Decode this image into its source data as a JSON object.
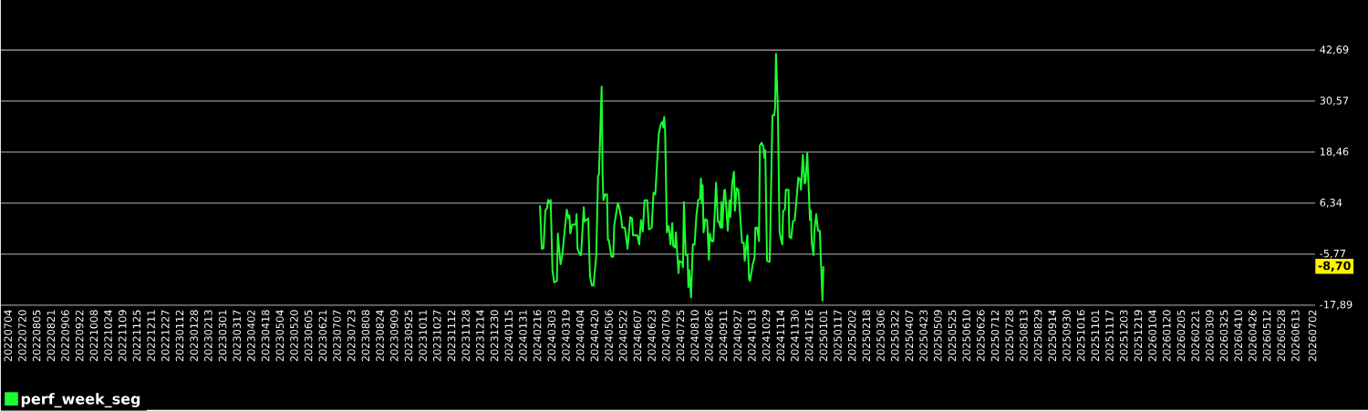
{
  "chart_data": {
    "type": "line",
    "xlim": [
      "2022-06-26",
      "2026-07-05"
    ],
    "ylim": [
      -17.89,
      42.69
    ],
    "yticks": [
      {
        "value": -17.89,
        "label": "-17,89"
      },
      {
        "value": -5.77,
        "label": "-5,77"
      },
      {
        "value": 6.34,
        "label": "6,34"
      },
      {
        "value": 18.46,
        "label": "18,46"
      },
      {
        "value": 30.57,
        "label": "30,57"
      },
      {
        "value": 42.69,
        "label": "42,69"
      }
    ],
    "xticks": [
      {
        "value": "2022-07-04",
        "label": "20220704"
      },
      {
        "value": "2022-07-20",
        "label": "20220720"
      },
      {
        "value": "2022-08-05",
        "label": "20220805"
      },
      {
        "value": "2022-08-21",
        "label": "20220821"
      },
      {
        "value": "2022-09-06",
        "label": "20220906"
      },
      {
        "value": "2022-09-22",
        "label": "20220922"
      },
      {
        "value": "2022-10-08",
        "label": "20221008"
      },
      {
        "value": "2022-10-24",
        "label": "20221024"
      },
      {
        "value": "2022-11-09",
        "label": "20221109"
      },
      {
        "value": "2022-11-25",
        "label": "20221125"
      },
      {
        "value": "2022-12-11",
        "label": "20221211"
      },
      {
        "value": "2022-12-27",
        "label": "20221227"
      },
      {
        "value": "2023-01-12",
        "label": "20230112"
      },
      {
        "value": "2023-01-28",
        "label": "20230128"
      },
      {
        "value": "2023-02-13",
        "label": "20230213"
      },
      {
        "value": "2023-03-01",
        "label": "20230301"
      },
      {
        "value": "2023-03-17",
        "label": "20230317"
      },
      {
        "value": "2023-04-02",
        "label": "20230402"
      },
      {
        "value": "2023-04-18",
        "label": "20230418"
      },
      {
        "value": "2023-05-04",
        "label": "20230504"
      },
      {
        "value": "2023-05-20",
        "label": "20230520"
      },
      {
        "value": "2023-06-05",
        "label": "20230605"
      },
      {
        "value": "2023-06-21",
        "label": "20230621"
      },
      {
        "value": "2023-07-07",
        "label": "20230707"
      },
      {
        "value": "2023-07-23",
        "label": "20230723"
      },
      {
        "value": "2023-08-08",
        "label": "20230808"
      },
      {
        "value": "2023-08-24",
        "label": "20230824"
      },
      {
        "value": "2023-09-09",
        "label": "20230909"
      },
      {
        "value": "2023-09-25",
        "label": "20230925"
      },
      {
        "value": "2023-10-11",
        "label": "20231011"
      },
      {
        "value": "2023-10-27",
        "label": "20231027"
      },
      {
        "value": "2023-11-12",
        "label": "20231112"
      },
      {
        "value": "2023-11-28",
        "label": "20231128"
      },
      {
        "value": "2023-12-14",
        "label": "20231214"
      },
      {
        "value": "2023-12-30",
        "label": "20231230"
      },
      {
        "value": "2024-01-15",
        "label": "20240115"
      },
      {
        "value": "2024-01-31",
        "label": "20240131"
      },
      {
        "value": "2024-02-16",
        "label": "20240216"
      },
      {
        "value": "2024-03-03",
        "label": "20240303"
      },
      {
        "value": "2024-03-19",
        "label": "20240319"
      },
      {
        "value": "2024-04-04",
        "label": "20240404"
      },
      {
        "value": "2024-04-20",
        "label": "20240420"
      },
      {
        "value": "2024-05-06",
        "label": "20240506"
      },
      {
        "value": "2024-05-22",
        "label": "20240522"
      },
      {
        "value": "2024-06-07",
        "label": "20240607"
      },
      {
        "value": "2024-06-23",
        "label": "20240623"
      },
      {
        "value": "2024-07-09",
        "label": "20240709"
      },
      {
        "value": "2024-07-25",
        "label": "20240725"
      },
      {
        "value": "2024-08-10",
        "label": "20240810"
      },
      {
        "value": "2024-08-26",
        "label": "20240826"
      },
      {
        "value": "2024-09-11",
        "label": "20240911"
      },
      {
        "value": "2024-09-27",
        "label": "20240927"
      },
      {
        "value": "2024-10-13",
        "label": "20241013"
      },
      {
        "value": "2024-10-29",
        "label": "20241029"
      },
      {
        "value": "2024-11-14",
        "label": "20241114"
      },
      {
        "value": "2024-11-30",
        "label": "20241130"
      },
      {
        "value": "2024-12-16",
        "label": "20241216"
      },
      {
        "value": "2025-01-01",
        "label": "20250101"
      },
      {
        "value": "2025-01-17",
        "label": "20250117"
      },
      {
        "value": "2025-02-02",
        "label": "20250202"
      },
      {
        "value": "2025-02-18",
        "label": "20250218"
      },
      {
        "value": "2025-03-06",
        "label": "20250306"
      },
      {
        "value": "2025-03-22",
        "label": "20250322"
      },
      {
        "value": "2025-04-07",
        "label": "20250407"
      },
      {
        "value": "2025-04-23",
        "label": "20250423"
      },
      {
        "value": "2025-05-09",
        "label": "20250509"
      },
      {
        "value": "2025-05-25",
        "label": "20250525"
      },
      {
        "value": "2025-06-10",
        "label": "20250610"
      },
      {
        "value": "2025-06-26",
        "label": "20250626"
      },
      {
        "value": "2025-07-12",
        "label": "20250712"
      },
      {
        "value": "2025-07-28",
        "label": "20250728"
      },
      {
        "value": "2025-08-13",
        "label": "20250813"
      },
      {
        "value": "2025-08-29",
        "label": "20250829"
      },
      {
        "value": "2025-09-14",
        "label": "20250914"
      },
      {
        "value": "2025-09-30",
        "label": "20250930"
      },
      {
        "value": "2025-10-16",
        "label": "20251016"
      },
      {
        "value": "2025-11-01",
        "label": "20251101"
      },
      {
        "value": "2025-11-17",
        "label": "20251117"
      },
      {
        "value": "2025-12-03",
        "label": "20251203"
      },
      {
        "value": "2025-12-19",
        "label": "20251219"
      },
      {
        "value": "2026-01-04",
        "label": "20260104"
      },
      {
        "value": "2026-01-20",
        "label": "20260120"
      },
      {
        "value": "2026-02-05",
        "label": "20260205"
      },
      {
        "value": "2026-02-21",
        "label": "20260221"
      },
      {
        "value": "2026-03-09",
        "label": "20260309"
      },
      {
        "value": "2026-03-25",
        "label": "20260325"
      },
      {
        "value": "2026-04-10",
        "label": "20260410"
      },
      {
        "value": "2026-04-26",
        "label": "20260426"
      },
      {
        "value": "2026-05-12",
        "label": "20260512"
      },
      {
        "value": "2026-05-28",
        "label": "20260528"
      },
      {
        "value": "2026-06-13",
        "label": "20260613"
      },
      {
        "value": "2026-07-02",
        "label": "20260702"
      }
    ],
    "grid": "y",
    "legend": "bottom left",
    "annotations": [
      {
        "text": "-8,70",
        "y": -8.7
      }
    ],
    "series": [
      {
        "name": "perf_week_seg",
        "color": "#1aff2e",
        "x": [
          "2024-02-19",
          "2024-02-21",
          "2024-02-23",
          "2024-02-25",
          "2024-02-27",
          "2024-02-28",
          "2024-03-01",
          "2024-03-02",
          "2024-03-04",
          "2024-03-06",
          "2024-03-09",
          "2024-03-10",
          "2024-03-13",
          "2024-03-15",
          "2024-03-20",
          "2024-03-22",
          "2024-03-23",
          "2024-03-24",
          "2024-03-26",
          "2024-03-30",
          "2024-03-31",
          "2024-04-01",
          "2024-04-04",
          "2024-04-05",
          "2024-04-08",
          "2024-04-09",
          "2024-04-13",
          "2024-04-15",
          "2024-04-17",
          "2024-04-19",
          "2024-04-22",
          "2024-04-24",
          "2024-04-25",
          "2024-04-28",
          "2024-04-29",
          "2024-04-30",
          "2024-05-02",
          "2024-05-04",
          "2024-05-05",
          "2024-05-06",
          "2024-05-09",
          "2024-05-11",
          "2024-05-12",
          "2024-05-16",
          "2024-05-17",
          "2024-05-20",
          "2024-05-21",
          "2024-05-24",
          "2024-05-27",
          "2024-05-30",
          "2024-06-01",
          "2024-06-02",
          "2024-06-07",
          "2024-06-09",
          "2024-06-11",
          "2024-06-13",
          "2024-06-15",
          "2024-06-18",
          "2024-06-20",
          "2024-06-23",
          "2024-06-25",
          "2024-06-27",
          "2024-07-01",
          "2024-07-03",
          "2024-07-05",
          "2024-07-06",
          "2024-07-07",
          "2024-07-08",
          "2024-07-10",
          "2024-07-12",
          "2024-07-14",
          "2024-07-16",
          "2024-07-17",
          "2024-07-19",
          "2024-07-20",
          "2024-07-23",
          "2024-07-24",
          "2024-07-27",
          "2024-07-28",
          "2024-07-29",
          "2024-07-31",
          "2024-08-02",
          "2024-08-03",
          "2024-08-04",
          "2024-08-06",
          "2024-08-08",
          "2024-08-10",
          "2024-08-12",
          "2024-08-14",
          "2024-08-16",
          "2024-08-17",
          "2024-08-18",
          "2024-08-19",
          "2024-08-20",
          "2024-08-22",
          "2024-08-24",
          "2024-08-26",
          "2024-08-27",
          "2024-08-29",
          "2024-08-31",
          "2024-09-03",
          "2024-09-05",
          "2024-09-06",
          "2024-09-08",
          "2024-09-09",
          "2024-09-10",
          "2024-09-12",
          "2024-09-13",
          "2024-09-15",
          "2024-09-16",
          "2024-09-18",
          "2024-09-19",
          "2024-09-21",
          "2024-09-23",
          "2024-09-24",
          "2024-09-26",
          "2024-09-28",
          "2024-10-02",
          "2024-10-04",
          "2024-10-05",
          "2024-10-08",
          "2024-10-10",
          "2024-10-11",
          "2024-10-14",
          "2024-10-16",
          "2024-10-17",
          "2024-10-19",
          "2024-10-21",
          "2024-10-22",
          "2024-10-24",
          "2024-10-26",
          "2024-10-27",
          "2024-10-28",
          "2024-10-30",
          "2024-11-02",
          "2024-11-05",
          "2024-11-07",
          "2024-11-08",
          "2024-11-09",
          "2024-11-11",
          "2024-11-13",
          "2024-11-16",
          "2024-11-17",
          "2024-11-19",
          "2024-11-20",
          "2024-11-23",
          "2024-11-24",
          "2024-11-26",
          "2024-11-28",
          "2024-11-30",
          "2024-12-04",
          "2024-12-06",
          "2024-12-07",
          "2024-12-09",
          "2024-12-11",
          "2024-12-12",
          "2024-12-14",
          "2024-12-17",
          "2024-12-18",
          "2024-12-19",
          "2024-12-21",
          "2024-12-22",
          "2024-12-24",
          "2024-12-26",
          "2024-12-28",
          "2024-12-29",
          "2024-12-31",
          "2025-01-01"
        ],
        "values": [
          5.8,
          -4.5,
          -4.4,
          4.5,
          5.2,
          7.1,
          6.3,
          7.1,
          -9.6,
          -12.5,
          -12.1,
          -0.9,
          -8.2,
          -6.0,
          4.8,
          2.7,
          3.4,
          -0.9,
          1.2,
          1.2,
          3.7,
          -4.5,
          -6.0,
          -6.0,
          5.4,
          2.0,
          2.7,
          -11.0,
          -13.2,
          -13.2,
          -6.0,
          12.8,
          13.1,
          34.0,
          13.5,
          7.0,
          8.4,
          8.4,
          -2.4,
          -2.4,
          -6.4,
          -6.4,
          0.9,
          6.3,
          5.9,
          2.7,
          0.5,
          0.5,
          -4.5,
          3.0,
          2.7,
          -1.3,
          -1.3,
          -3.5,
          2.3,
          -0.4,
          7.0,
          7.0,
          0.1,
          0.5,
          8.8,
          8.4,
          22.9,
          25.0,
          25.7,
          24.3,
          26.8,
          23.6,
          -0.6,
          0.9,
          -3.5,
          1.6,
          -3.8,
          -4.2,
          -0.6,
          -10.3,
          -7.4,
          -7.8,
          -8.9,
          6.6,
          -6.0,
          -6.0,
          -13.6,
          -9.6,
          -16.1,
          -3.5,
          -3.5,
          3.4,
          7.0,
          7.4,
          12.2,
          6.3,
          10.6,
          -0.6,
          2.5,
          2.3,
          -7.1,
          -0.9,
          -2.7,
          -2.7,
          11.2,
          2.0,
          2.0,
          0.5,
          6.6,
          0.5,
          9.3,
          9.5,
          3.4,
          -0.2,
          7.0,
          3.0,
          11.0,
          13.8,
          4.5,
          9.9,
          9.5,
          -3.1,
          -3.1,
          -7.4,
          -1.3,
          -11.8,
          -12.1,
          -8.2,
          -6.7,
          0.5,
          0.5,
          -2.7,
          20.0,
          20.7,
          19.6,
          17.1,
          18.9,
          -7.4,
          -7.6,
          27.2,
          27.2,
          29.0,
          41.8,
          29.3,
          -0.6,
          -3.5,
          4.5,
          4.8,
          9.5,
          9.5,
          -1.7,
          -2.0,
          2.0,
          2.3,
          12.4,
          12.0,
          9.5,
          17.8,
          11.0,
          11.3,
          18.2,
          2.3,
          4.5,
          -3.1,
          -6.0,
          -0.2,
          3.7,
          -0.2,
          -0.2,
          -6.0,
          -16.8,
          -8.7
        ]
      }
    ]
  }
}
